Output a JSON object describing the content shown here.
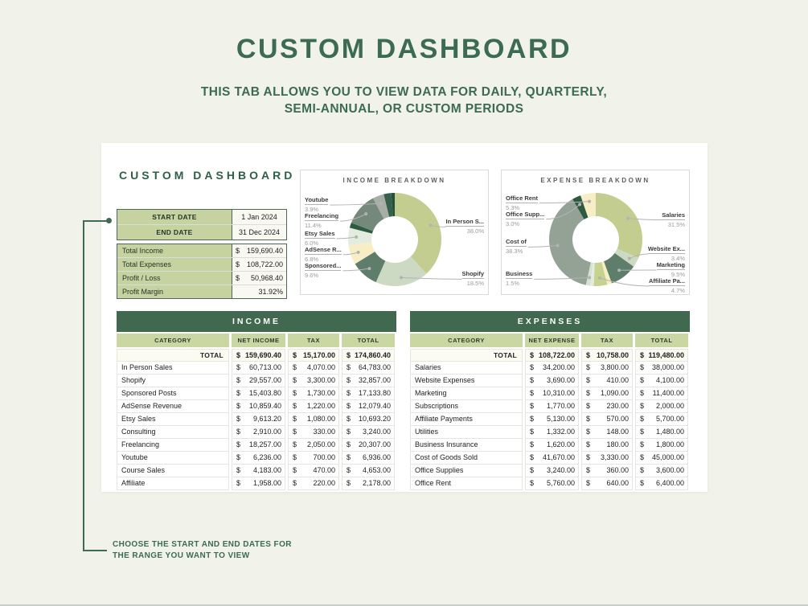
{
  "page": {
    "title": "CUSTOM DASHBOARD",
    "subtitle": [
      "THIS TAB ALLOWS YOU TO VIEW DATA FOR DAILY, QUARTERLY,",
      "SEMI-ANNUAL, OR CUSTOM PERIODS"
    ],
    "annotation": [
      "CHOOSE THE START AND END DATES FOR",
      "THE RANGE YOU WANT TO VIEW"
    ]
  },
  "colors": {
    "accent_green": "#3c6b52",
    "table_header_bar": "#41694f",
    "column_header_bg": "#cbd7a3",
    "label_cell_bg": "#c6d2a0",
    "page_bg": "#f1f2e9"
  },
  "card": {
    "heading": "CUSTOM DASHBOARD",
    "date_range": [
      {
        "label": "START DATE",
        "value": "1 Jan 2024"
      },
      {
        "label": "END DATE",
        "value": "31 Dec 2024"
      }
    ],
    "summary": [
      {
        "label": "Total Income",
        "currency": "$",
        "value": "159,690.40"
      },
      {
        "label": "Total Expenses",
        "currency": "$",
        "value": "108,722.00"
      },
      {
        "label": "Profit / Loss",
        "currency": "$",
        "value": "50,968.40"
      },
      {
        "label": "Profit Margin",
        "currency": "",
        "value": "31.92%"
      }
    ]
  },
  "chart_data": [
    {
      "type": "donut",
      "title": "INCOME BREAKDOWN",
      "legend_position": "callout-labels",
      "slices": [
        {
          "name": "In Person Sales",
          "label": "In Person S...",
          "pct": 38.0,
          "color": "#c3cd90"
        },
        {
          "name": "Shopify",
          "label": "Shopify",
          "pct": 18.5,
          "color": "#ccd9c3"
        },
        {
          "name": "Sponsored Posts",
          "label": "Sponsored...",
          "pct": 9.6,
          "color": "#5f7d6b"
        },
        {
          "name": "AdSense Revenue",
          "label": "AdSense R...",
          "pct": 6.8,
          "color": "#f8eec6"
        },
        {
          "name": "Etsy Sales",
          "label": "Etsy Sales",
          "pct": 6.0,
          "color": "#e3ecdf"
        },
        {
          "name": "Consulting",
          "label": null,
          "pct": 1.8,
          "color": "#2d5a40"
        },
        {
          "name": "Freelancing",
          "label": "Freelancing",
          "pct": 11.4,
          "color": "#74897a"
        },
        {
          "name": "Youtube",
          "label": "Youtube",
          "pct": 3.9,
          "color": "#a6aea6"
        },
        {
          "name": "Course Sales",
          "label": null,
          "pct": 2.6,
          "color": "#356049"
        },
        {
          "name": "Affiliate",
          "label": null,
          "pct": 1.2,
          "color": "#24503a"
        }
      ]
    },
    {
      "type": "donut",
      "title": "EXPENSE BREAKDOWN",
      "legend_position": "callout-labels",
      "slices": [
        {
          "name": "Salaries",
          "label": "Salaries",
          "pct": 31.5,
          "color": "#c3cd90"
        },
        {
          "name": "Website Expenses",
          "label": "Website Ex...",
          "pct": 3.4,
          "color": "#ccd9c3"
        },
        {
          "name": "Marketing",
          "label": "Marketing",
          "pct": 9.5,
          "color": "#5f7d6b"
        },
        {
          "name": "Subscriptions",
          "label": null,
          "pct": 1.6,
          "color": "#f8eec6"
        },
        {
          "name": "Affiliate Payments",
          "label": "Affiliate Pa...",
          "pct": 4.7,
          "color": "#c6d28e"
        },
        {
          "name": "Utilities",
          "label": null,
          "pct": 1.2,
          "color": "#e3ecdf"
        },
        {
          "name": "Business Insurance",
          "label": "Business",
          "pct": 1.5,
          "color": "#d7e2d2"
        },
        {
          "name": "Cost of Goods Sold",
          "label": "Cost of",
          "pct": 38.3,
          "color": "#93a294"
        },
        {
          "name": "Office Supplies",
          "label": "Office Supp...",
          "pct": 3.0,
          "color": "#2d5a40"
        },
        {
          "name": "Office Rent",
          "label": "Office Rent",
          "pct": 5.3,
          "color": "#f8eec6"
        }
      ]
    }
  ],
  "income_table": {
    "title": "INCOME",
    "columns": [
      "CATEGORY",
      "NET INCOME",
      "TAX",
      "TOTAL"
    ],
    "currency": "$",
    "total_row": {
      "label": "TOTAL",
      "values": [
        "159,690.40",
        "15,170.00",
        "174,860.40"
      ]
    },
    "rows": [
      {
        "category": "In Person Sales",
        "values": [
          "60,713.00",
          "4,070.00",
          "64,783.00"
        ]
      },
      {
        "category": "Shopify",
        "values": [
          "29,557.00",
          "3,300.00",
          "32,857.00"
        ]
      },
      {
        "category": "Sponsored Posts",
        "values": [
          "15,403.80",
          "1,730.00",
          "17,133.80"
        ]
      },
      {
        "category": "AdSense Revenue",
        "values": [
          "10,859.40",
          "1,220.00",
          "12,079.40"
        ]
      },
      {
        "category": "Etsy Sales",
        "values": [
          "9,613.20",
          "1,080.00",
          "10,693.20"
        ]
      },
      {
        "category": "Consulting",
        "values": [
          "2,910.00",
          "330.00",
          "3,240.00"
        ]
      },
      {
        "category": "Freelancing",
        "values": [
          "18,257.00",
          "2,050.00",
          "20,307.00"
        ]
      },
      {
        "category": "Youtube",
        "values": [
          "6,236.00",
          "700.00",
          "6,936.00"
        ]
      },
      {
        "category": "Course Sales",
        "values": [
          "4,183.00",
          "470.00",
          "4,653.00"
        ]
      },
      {
        "category": "Affiliate",
        "values": [
          "1,958.00",
          "220.00",
          "2,178.00"
        ]
      }
    ]
  },
  "expenses_table": {
    "title": "EXPENSES",
    "columns": [
      "CATEGORY",
      "NET EXPENSE",
      "TAX",
      "TOTAL"
    ],
    "currency": "$",
    "total_row": {
      "label": "TOTAL",
      "values": [
        "108,722.00",
        "10,758.00",
        "119,480.00"
      ]
    },
    "rows": [
      {
        "category": "Salaries",
        "values": [
          "34,200.00",
          "3,800.00",
          "38,000.00"
        ]
      },
      {
        "category": "Website Expenses",
        "values": [
          "3,690.00",
          "410.00",
          "4,100.00"
        ]
      },
      {
        "category": "Marketing",
        "values": [
          "10,310.00",
          "1,090.00",
          "11,400.00"
        ]
      },
      {
        "category": "Subscriptions",
        "values": [
          "1,770.00",
          "230.00",
          "2,000.00"
        ]
      },
      {
        "category": "Affiliate Payments",
        "values": [
          "5,130.00",
          "570.00",
          "5,700.00"
        ]
      },
      {
        "category": "Utilities",
        "values": [
          "1,332.00",
          "148.00",
          "1,480.00"
        ]
      },
      {
        "category": "Business Insurance",
        "values": [
          "1,620.00",
          "180.00",
          "1,800.00"
        ]
      },
      {
        "category": "Cost of Goods Sold",
        "values": [
          "41,670.00",
          "3,330.00",
          "45,000.00"
        ]
      },
      {
        "category": "Office Supplies",
        "values": [
          "3,240.00",
          "360.00",
          "3,600.00"
        ]
      },
      {
        "category": "Office Rent",
        "values": [
          "5,760.00",
          "640.00",
          "6,400.00"
        ]
      }
    ]
  }
}
